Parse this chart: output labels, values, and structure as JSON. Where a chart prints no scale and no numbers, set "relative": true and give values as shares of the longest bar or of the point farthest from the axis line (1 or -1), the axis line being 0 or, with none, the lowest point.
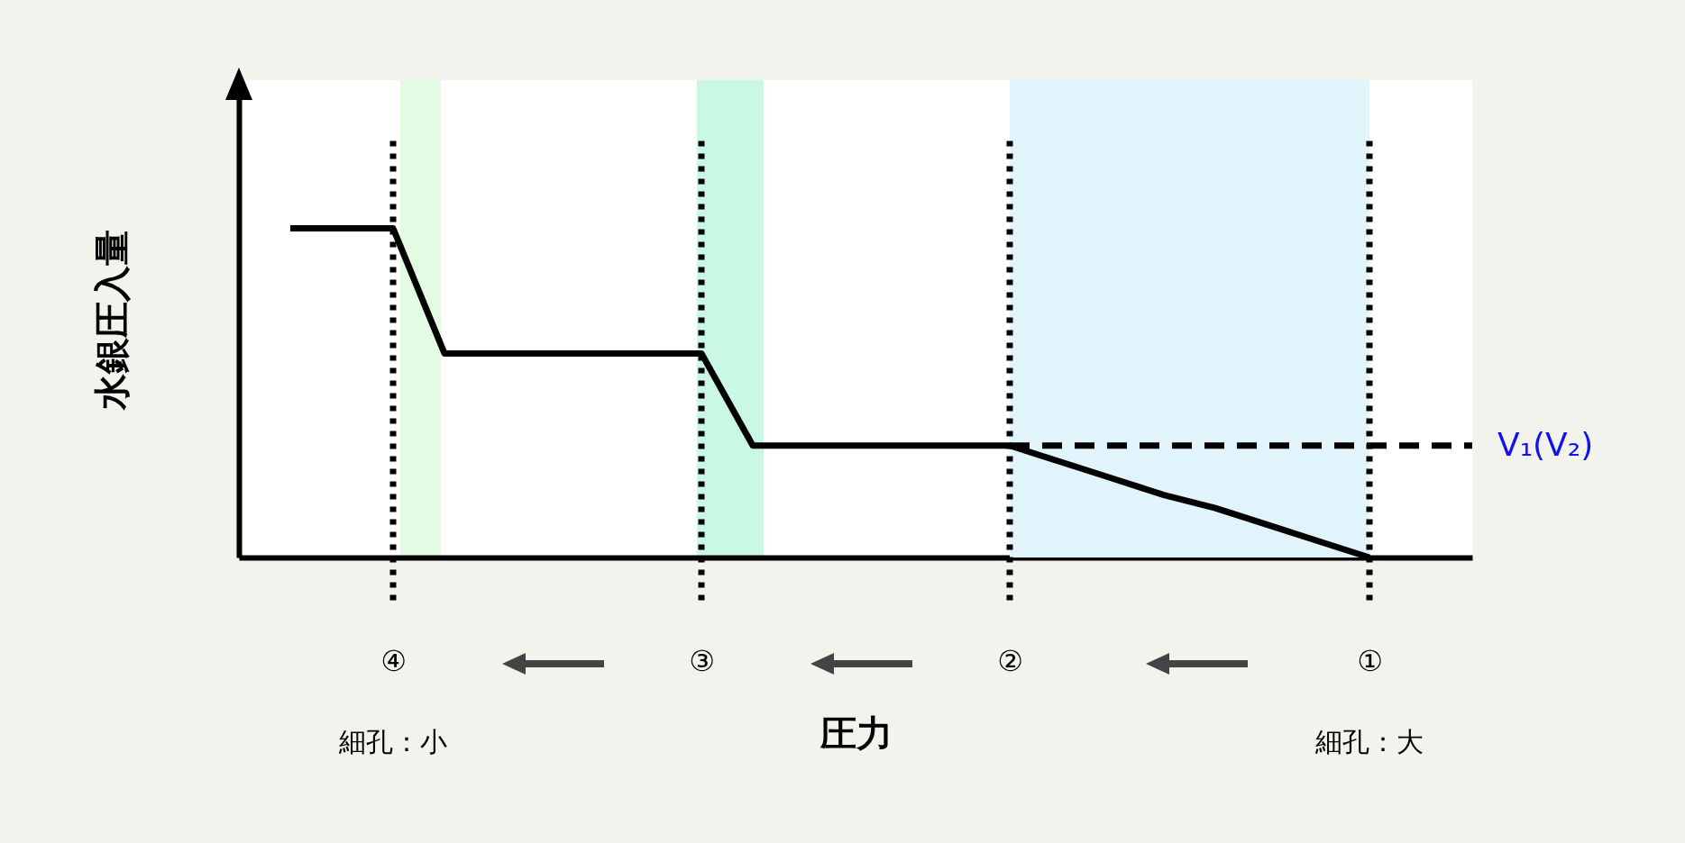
{
  "chart_data": {
    "type": "line",
    "relative": true,
    "xlabel": "圧力",
    "ylabel": "水銀圧入量",
    "categories": [
      null,
      null,
      null,
      "④",
      null,
      null,
      null,
      null,
      null,
      "③",
      null,
      null,
      null,
      null,
      null,
      "②",
      null,
      null,
      null,
      null,
      null,
      null,
      "①",
      null,
      null
    ],
    "series": [
      {
        "color": "#000000",
        "values": [
          null,
          1,
          1,
          1,
          0.62,
          0.62,
          0.62,
          0.62,
          0.62,
          0.62,
          0.34,
          0.34,
          0.34,
          0.34,
          0.34,
          0.34,
          0.29,
          0.24,
          0.19,
          0.15,
          0.1,
          0.05,
          0,
          null,
          null
        ]
      }
    ],
    "ref_lines": [
      {
        "axis": "x",
        "value": "④",
        "line_style": "dotted",
        "color": "#000000"
      },
      {
        "axis": "x",
        "value": "③",
        "line_style": "dotted",
        "color": "#000000"
      },
      {
        "axis": "x",
        "value": "②",
        "line_style": "dotted",
        "color": "#000000"
      },
      {
        "axis": "x",
        "value": "①",
        "line_style": "dotted",
        "color": "#000000"
      },
      {
        "axis": "y",
        "value": 0.34,
        "label": "V₁(V₂)",
        "line_style": "dashed",
        "color": "#000000"
      }
    ],
    "bands": [
      {
        "axis": "x",
        "from": "②",
        "to": "①",
        "color": "#e2f4fb"
      }
    ],
    "annotations": [
      "細孔：小",
      "細孔：大"
    ],
    "grid": false,
    "marker": "none",
    "line_style": "solid"
  }
}
